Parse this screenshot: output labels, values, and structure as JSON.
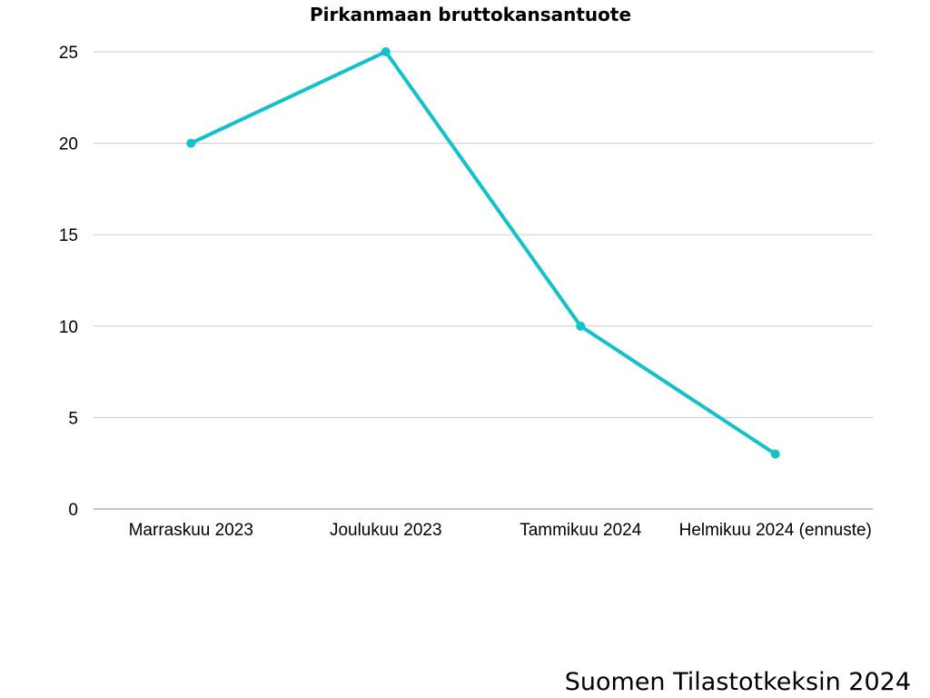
{
  "chart_data": {
    "type": "line",
    "title": "Pirkanmaan bruttokansantuote",
    "xlabel": "",
    "ylabel": "",
    "categories": [
      "Marraskuu 2023",
      "Joulukuu 2023",
      "Tammikuu 2024",
      "Helmikuu 2024 (ennuste)"
    ],
    "series": [
      {
        "values": [
          20,
          25,
          10,
          3
        ],
        "color": "#12c1c9"
      }
    ],
    "ylim": [
      0,
      25
    ],
    "yticks": [
      0,
      5,
      10,
      15,
      20,
      25
    ],
    "grid": true,
    "legend": "none"
  },
  "source_note": "Suomen Tilastotkeksin 2024"
}
